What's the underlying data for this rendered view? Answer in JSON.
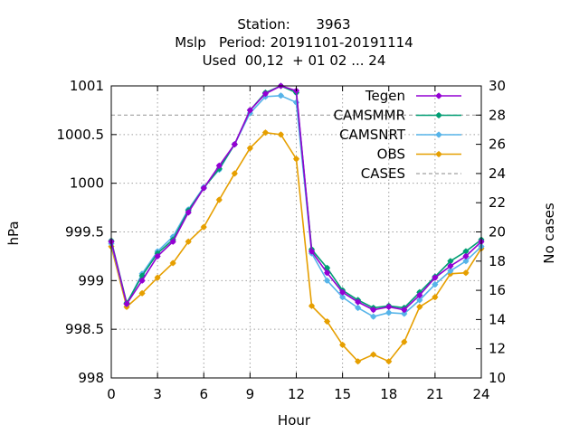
{
  "chart_data": {
    "type": "line",
    "title_lines": [
      "Station:      3963",
      "Mslp   Period: 20191101-20191114",
      "Used  00,12  + 01 02 ... 24"
    ],
    "xlabel": "Hour",
    "ylabel": "hPa",
    "y2label": "No cases",
    "xlim": [
      0,
      24
    ],
    "ylim": [
      998,
      1001
    ],
    "y2lim": [
      10,
      30
    ],
    "xticks": [
      0,
      3,
      6,
      9,
      12,
      15,
      18,
      21,
      24
    ],
    "yticks": [
      998,
      998.5,
      999,
      999.5,
      1000,
      1000.5,
      1001
    ],
    "y2ticks": [
      10,
      12,
      14,
      16,
      18,
      20,
      22,
      24,
      26,
      28,
      30
    ],
    "grid": true,
    "legend_position": "top-right",
    "x": [
      0,
      1,
      2,
      3,
      4,
      5,
      6,
      7,
      8,
      9,
      10,
      11,
      12,
      13,
      14,
      15,
      16,
      17,
      18,
      19,
      20,
      21,
      22,
      23,
      24
    ],
    "series": [
      {
        "name": "Tegen",
        "color": "#9400d3",
        "axis": "y",
        "values": [
          999.4,
          998.76,
          999.0,
          999.25,
          999.4,
          999.7,
          999.95,
          1000.18,
          1000.4,
          1000.75,
          1000.92,
          1001.0,
          1000.95,
          999.3,
          999.08,
          998.88,
          998.78,
          998.7,
          998.73,
          998.7,
          998.85,
          999.03,
          999.15,
          999.25,
          999.4
        ]
      },
      {
        "name": "CAMSMMR",
        "color": "#009e73",
        "axis": "y",
        "values": [
          999.41,
          998.77,
          999.05,
          999.28,
          999.42,
          999.72,
          999.95,
          1000.15,
          1000.4,
          1000.75,
          1000.93,
          1001.0,
          1000.93,
          999.32,
          999.13,
          998.9,
          998.8,
          998.72,
          998.74,
          998.72,
          998.88,
          999.04,
          999.2,
          999.3,
          999.42
        ]
      },
      {
        "name": "CAMSNRT",
        "color": "#56b4e9",
        "axis": "y",
        "values": [
          999.38,
          998.76,
          999.07,
          999.3,
          999.45,
          999.73,
          999.96,
          1000.14,
          1000.4,
          1000.72,
          1000.89,
          1000.9,
          1000.83,
          999.28,
          999.0,
          998.83,
          998.72,
          998.63,
          998.67,
          998.66,
          998.8,
          998.96,
          999.1,
          999.2,
          999.35
        ]
      },
      {
        "name": "OBS",
        "color": "#e69f00",
        "axis": "y",
        "values": [
          999.35,
          998.73,
          998.87,
          999.03,
          999.18,
          999.4,
          999.55,
          999.83,
          1000.1,
          1000.36,
          1000.52,
          1000.5,
          1000.25,
          998.74,
          998.58,
          998.34,
          998.17,
          998.24,
          998.17,
          998.37,
          998.73,
          998.83,
          999.07,
          999.08,
          999.33
        ]
      },
      {
        "name": "CASES",
        "color": "#a0a0a0",
        "axis": "y2",
        "dashed": true,
        "values": [
          28,
          28,
          28,
          28,
          28,
          28,
          28,
          28,
          28,
          28,
          28,
          28,
          28,
          28,
          28,
          28,
          28,
          28,
          28,
          28,
          28,
          28,
          28,
          28,
          28
        ]
      }
    ]
  }
}
